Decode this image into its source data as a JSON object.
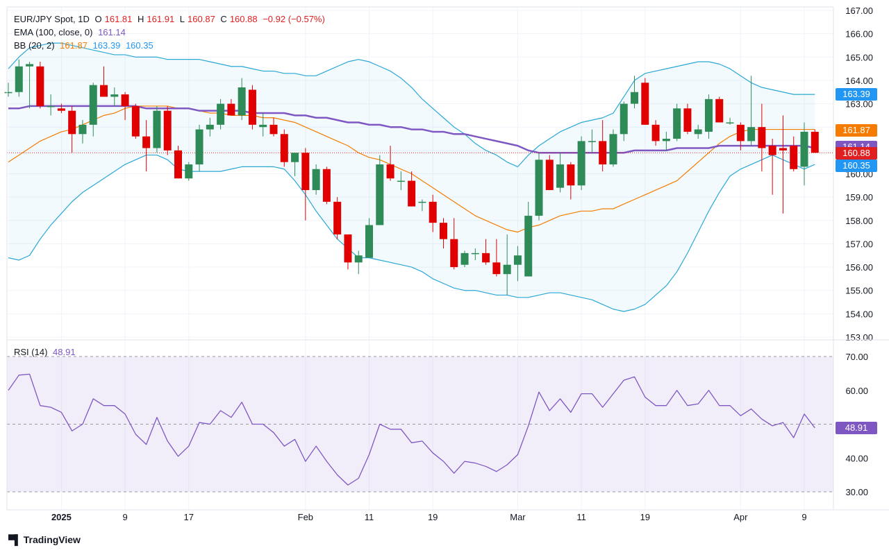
{
  "legend": {
    "symbol": "EUR/JPY Spot, 1D",
    "o_label": "O",
    "o": "161.81",
    "h_label": "H",
    "h": "161.91",
    "l_label": "L",
    "l": "160.87",
    "c_label": "C",
    "c": "160.88",
    "change": "−0.92 (−0.57%)",
    "ema_label": "EMA (100, close, 0)",
    "ema_value": "161.14",
    "bb_label": "BB (20, 2)",
    "bb_mid": "161.87",
    "bb_upper": "163.39",
    "bb_lower": "160.35",
    "rsi_label": "RSI (14)",
    "rsi_value": "48.91"
  },
  "price_badges": [
    {
      "text": "163.39",
      "value": 163.39,
      "color": "#2196f3"
    },
    {
      "text": "161.87",
      "value": 161.87,
      "color": "#f57c00"
    },
    {
      "text": "161.14",
      "value": 161.14,
      "color": "#7e57c2"
    },
    {
      "text": "160.88",
      "value": 160.88,
      "color": "#e02020"
    },
    {
      "text": "160.35",
      "value": 160.35,
      "color": "#2196f3"
    }
  ],
  "rsi_badge": {
    "text": "48.91",
    "value": 48.91,
    "color": "#7e57c2"
  },
  "brand": "TradingView",
  "colors": {
    "up": "#2e8b57",
    "down": "#e00000",
    "ema": "#7e57c2",
    "bb_mid": "#f57c00",
    "bb_band": "#2aa7d6",
    "rsi": "#7e57c2"
  },
  "chart_data": [
    {
      "type": "candlestick",
      "title": "EUR/JPY Spot, 1D",
      "ylim": [
        153.0,
        167.0
      ],
      "y_ticks": [
        "167.00",
        "166.00",
        "165.00",
        "164.00",
        "163.00",
        "162.00",
        "161.00",
        "160.00",
        "159.00",
        "158.00",
        "157.00",
        "156.00",
        "155.00",
        "154.00",
        "153.00"
      ],
      "x_ticks": [
        {
          "label": "2025",
          "i": 5
        },
        {
          "label": "9",
          "i": 11
        },
        {
          "label": "17",
          "i": 17
        },
        {
          "label": "Feb",
          "i": 28
        },
        {
          "label": "11",
          "i": 34
        },
        {
          "label": "19",
          "i": 40
        },
        {
          "label": "Mar",
          "i": 48
        },
        {
          "label": "11",
          "i": 54
        },
        {
          "label": "19",
          "i": 60
        },
        {
          "label": "Apr",
          "i": 69
        },
        {
          "label": "9",
          "i": 75
        }
      ],
      "candles": [
        {
          "o": 163.5,
          "h": 163.9,
          "l": 163.3,
          "c": 163.5
        },
        {
          "o": 163.5,
          "h": 164.9,
          "l": 163.3,
          "c": 164.6
        },
        {
          "o": 164.6,
          "h": 164.8,
          "l": 162.8,
          "c": 164.7
        },
        {
          "o": 164.6,
          "h": 164.8,
          "l": 162.8,
          "c": 162.9
        },
        {
          "o": 162.9,
          "h": 163.4,
          "l": 162.5,
          "c": 162.9
        },
        {
          "o": 162.8,
          "h": 163.0,
          "l": 162.6,
          "c": 162.7
        },
        {
          "o": 162.7,
          "h": 162.9,
          "l": 160.9,
          "c": 161.7
        },
        {
          "o": 161.7,
          "h": 162.3,
          "l": 161.3,
          "c": 162.1
        },
        {
          "o": 162.1,
          "h": 163.9,
          "l": 161.6,
          "c": 163.8
        },
        {
          "o": 163.8,
          "h": 164.6,
          "l": 163.3,
          "c": 163.3
        },
        {
          "o": 163.3,
          "h": 163.7,
          "l": 162.9,
          "c": 163.4
        },
        {
          "o": 163.4,
          "h": 163.5,
          "l": 162.3,
          "c": 162.9
        },
        {
          "o": 162.9,
          "h": 163.0,
          "l": 161.5,
          "c": 161.6
        },
        {
          "o": 161.6,
          "h": 162.3,
          "l": 160.1,
          "c": 161.1
        },
        {
          "o": 161.1,
          "h": 162.9,
          "l": 160.9,
          "c": 162.7
        },
        {
          "o": 162.7,
          "h": 162.9,
          "l": 160.8,
          "c": 161.0
        },
        {
          "o": 161.0,
          "h": 161.2,
          "l": 159.8,
          "c": 159.8
        },
        {
          "o": 159.8,
          "h": 160.5,
          "l": 159.7,
          "c": 160.4
        },
        {
          "o": 160.4,
          "h": 162.1,
          "l": 160.1,
          "c": 161.9
        },
        {
          "o": 161.9,
          "h": 162.4,
          "l": 161.6,
          "c": 162.1
        },
        {
          "o": 162.1,
          "h": 163.2,
          "l": 161.9,
          "c": 163.0
        },
        {
          "o": 163.0,
          "h": 163.2,
          "l": 162.5,
          "c": 162.5
        },
        {
          "o": 162.5,
          "h": 164.1,
          "l": 162.3,
          "c": 163.7
        },
        {
          "o": 163.6,
          "h": 163.8,
          "l": 161.9,
          "c": 162.1
        },
        {
          "o": 162.0,
          "h": 162.6,
          "l": 161.6,
          "c": 162.1
        },
        {
          "o": 162.1,
          "h": 162.4,
          "l": 161.6,
          "c": 161.7
        },
        {
          "o": 161.7,
          "h": 161.9,
          "l": 160.3,
          "c": 160.5
        },
        {
          "o": 160.5,
          "h": 160.8,
          "l": 159.9,
          "c": 160.9
        },
        {
          "o": 160.9,
          "h": 161.1,
          "l": 158.0,
          "c": 159.3
        },
        {
          "o": 159.3,
          "h": 160.4,
          "l": 159.1,
          "c": 160.2
        },
        {
          "o": 160.2,
          "h": 160.3,
          "l": 158.7,
          "c": 158.8
        },
        {
          "o": 158.8,
          "h": 159.0,
          "l": 157.2,
          "c": 157.4
        },
        {
          "o": 157.4,
          "h": 157.4,
          "l": 155.9,
          "c": 156.2
        },
        {
          "o": 156.2,
          "h": 156.7,
          "l": 155.7,
          "c": 156.5
        },
        {
          "o": 156.4,
          "h": 158.1,
          "l": 156.4,
          "c": 157.8
        },
        {
          "o": 157.8,
          "h": 160.8,
          "l": 157.9,
          "c": 160.4
        },
        {
          "o": 160.4,
          "h": 161.2,
          "l": 159.7,
          "c": 159.8
        },
        {
          "o": 159.7,
          "h": 160.1,
          "l": 159.3,
          "c": 159.7
        },
        {
          "o": 159.7,
          "h": 160.1,
          "l": 158.6,
          "c": 158.6
        },
        {
          "o": 158.8,
          "h": 158.9,
          "l": 158.4,
          "c": 158.8
        },
        {
          "o": 158.8,
          "h": 159.1,
          "l": 157.5,
          "c": 157.9
        },
        {
          "o": 157.9,
          "h": 158.1,
          "l": 156.8,
          "c": 157.2
        },
        {
          "o": 157.2,
          "h": 158.1,
          "l": 155.9,
          "c": 156.0
        },
        {
          "o": 156.1,
          "h": 156.7,
          "l": 156.0,
          "c": 156.6
        },
        {
          "o": 156.6,
          "h": 156.8,
          "l": 156.3,
          "c": 156.6
        },
        {
          "o": 156.6,
          "h": 157.2,
          "l": 156.1,
          "c": 156.2
        },
        {
          "o": 156.2,
          "h": 157.2,
          "l": 155.6,
          "c": 155.7
        },
        {
          "o": 155.7,
          "h": 157.4,
          "l": 154.8,
          "c": 156.1
        },
        {
          "o": 156.1,
          "h": 156.9,
          "l": 155.4,
          "c": 156.5
        },
        {
          "o": 155.6,
          "h": 158.8,
          "l": 155.6,
          "c": 158.2
        },
        {
          "o": 158.2,
          "h": 160.9,
          "l": 158.0,
          "c": 160.6
        },
        {
          "o": 160.6,
          "h": 160.8,
          "l": 159.3,
          "c": 159.3
        },
        {
          "o": 159.4,
          "h": 160.9,
          "l": 159.2,
          "c": 160.4
        },
        {
          "o": 160.4,
          "h": 160.5,
          "l": 158.9,
          "c": 159.5
        },
        {
          "o": 159.5,
          "h": 161.6,
          "l": 159.3,
          "c": 161.4
        },
        {
          "o": 161.4,
          "h": 161.9,
          "l": 160.9,
          "c": 161.4
        },
        {
          "o": 161.4,
          "h": 162.3,
          "l": 160.1,
          "c": 160.4
        },
        {
          "o": 160.4,
          "h": 161.9,
          "l": 160.3,
          "c": 161.7
        },
        {
          "o": 161.7,
          "h": 163.1,
          "l": 161.4,
          "c": 163.0
        },
        {
          "o": 163.0,
          "h": 164.2,
          "l": 162.8,
          "c": 163.5
        },
        {
          "o": 163.9,
          "h": 164.1,
          "l": 162.1,
          "c": 162.1
        },
        {
          "o": 162.1,
          "h": 162.3,
          "l": 161.2,
          "c": 161.4
        },
        {
          "o": 161.4,
          "h": 161.8,
          "l": 161.0,
          "c": 161.5
        },
        {
          "o": 161.5,
          "h": 163.0,
          "l": 161.4,
          "c": 162.8
        },
        {
          "o": 162.8,
          "h": 163.0,
          "l": 161.7,
          "c": 161.8
        },
        {
          "o": 161.7,
          "h": 162.1,
          "l": 161.5,
          "c": 161.9
        },
        {
          "o": 161.8,
          "h": 163.4,
          "l": 161.5,
          "c": 163.2
        },
        {
          "o": 163.2,
          "h": 163.3,
          "l": 162.2,
          "c": 162.2
        },
        {
          "o": 162.2,
          "h": 162.4,
          "l": 162.1,
          "c": 162.2
        },
        {
          "o": 162.1,
          "h": 162.2,
          "l": 161.0,
          "c": 161.4
        },
        {
          "o": 161.4,
          "h": 164.2,
          "l": 161.2,
          "c": 162.0
        },
        {
          "o": 162.0,
          "h": 163.0,
          "l": 160.1,
          "c": 161.1
        },
        {
          "o": 161.2,
          "h": 161.5,
          "l": 159.1,
          "c": 160.8
        },
        {
          "o": 161.1,
          "h": 162.5,
          "l": 158.3,
          "c": 161.0
        },
        {
          "o": 161.2,
          "h": 161.6,
          "l": 160.1,
          "c": 160.2
        },
        {
          "o": 160.3,
          "h": 162.2,
          "l": 159.5,
          "c": 161.8
        },
        {
          "o": 161.8,
          "h": 161.9,
          "l": 160.9,
          "c": 160.9
        }
      ],
      "ema": [
        162.8,
        162.8,
        162.9,
        162.9,
        162.9,
        162.9,
        162.9,
        162.9,
        162.9,
        162.9,
        162.9,
        162.9,
        162.9,
        162.8,
        162.8,
        162.8,
        162.8,
        162.8,
        162.7,
        162.7,
        162.7,
        162.7,
        162.7,
        162.6,
        162.6,
        162.6,
        162.6,
        162.5,
        162.5,
        162.4,
        162.4,
        162.3,
        162.2,
        162.2,
        162.1,
        162.1,
        162.0,
        162.0,
        161.9,
        161.9,
        161.8,
        161.8,
        161.7,
        161.7,
        161.6,
        161.5,
        161.4,
        161.3,
        161.2,
        161.0,
        160.9,
        160.9,
        160.9,
        160.9,
        160.9,
        160.9,
        160.9,
        160.9,
        160.9,
        161.0,
        161.0,
        161.0,
        161.0,
        161.1,
        161.1,
        161.1,
        161.1,
        161.2,
        161.2,
        161.2,
        161.2,
        161.2,
        161.2,
        161.2,
        161.2,
        161.2,
        161.1
      ],
      "bb_mid": [
        160.5,
        160.8,
        161.1,
        161.4,
        161.6,
        161.8,
        161.9,
        162.1,
        162.3,
        162.5,
        162.6,
        162.8,
        162.9,
        162.9,
        162.9,
        162.9,
        162.8,
        162.8,
        162.7,
        162.6,
        162.6,
        162.5,
        162.5,
        162.5,
        162.4,
        162.4,
        162.3,
        162.2,
        162.0,
        161.8,
        161.6,
        161.4,
        161.2,
        160.9,
        160.7,
        160.6,
        160.4,
        160.2,
        160.0,
        159.7,
        159.4,
        159.1,
        158.8,
        158.5,
        158.2,
        158.0,
        157.8,
        157.6,
        157.5,
        157.7,
        157.8,
        158.0,
        158.2,
        158.3,
        158.4,
        158.4,
        158.5,
        158.5,
        158.7,
        158.9,
        159.1,
        159.3,
        159.5,
        159.7,
        160.1,
        160.5,
        160.9,
        161.3,
        161.6,
        161.8,
        161.9,
        161.9,
        161.9,
        161.9,
        161.9,
        161.9,
        161.9
      ],
      "bb_upper": [
        164.5,
        165.0,
        165.4,
        165.5,
        165.6,
        165.6,
        165.5,
        165.4,
        165.3,
        165.2,
        165.1,
        165.1,
        165.0,
        165.0,
        165.0,
        164.9,
        164.9,
        164.9,
        164.9,
        164.8,
        164.7,
        164.6,
        164.6,
        164.5,
        164.4,
        164.4,
        164.3,
        164.3,
        164.2,
        164.2,
        164.4,
        164.6,
        164.8,
        164.9,
        164.8,
        164.6,
        164.4,
        164.1,
        163.7,
        163.2,
        162.8,
        162.4,
        162.0,
        161.7,
        161.3,
        161.0,
        160.8,
        160.5,
        160.3,
        160.8,
        161.2,
        161.5,
        161.8,
        162.0,
        162.2,
        162.3,
        162.4,
        162.6,
        163.3,
        164.0,
        164.3,
        164.4,
        164.5,
        164.6,
        164.7,
        164.8,
        164.8,
        164.7,
        164.5,
        164.2,
        163.9,
        163.7,
        163.6,
        163.5,
        163.4,
        163.4,
        163.4
      ],
      "bb_lower": [
        156.4,
        156.3,
        156.5,
        157.2,
        157.8,
        158.3,
        158.8,
        159.2,
        159.5,
        159.8,
        160.1,
        160.4,
        160.6,
        160.8,
        160.8,
        160.6,
        160.2,
        160.1,
        160.1,
        160.1,
        160.1,
        160.2,
        160.3,
        160.3,
        160.3,
        160.3,
        160.2,
        159.7,
        159.1,
        158.4,
        157.8,
        157.2,
        156.8,
        156.4,
        156.4,
        156.3,
        156.2,
        156.1,
        156.0,
        155.8,
        155.5,
        155.3,
        155.1,
        155.0,
        155.0,
        154.9,
        154.8,
        154.8,
        154.7,
        154.7,
        154.8,
        154.9,
        154.9,
        154.8,
        154.7,
        154.6,
        154.4,
        154.2,
        154.1,
        154.2,
        154.4,
        154.8,
        155.2,
        155.8,
        156.6,
        157.5,
        158.4,
        159.2,
        159.9,
        160.2,
        160.4,
        160.6,
        160.8,
        160.6,
        160.4,
        160.2,
        160.4
      ]
    },
    {
      "type": "line",
      "title": "RSI (14)",
      "ylim": [
        30,
        70
      ],
      "y_ticks": [
        "70.00",
        "60.00",
        "40.00",
        "30.00"
      ],
      "band": [
        30,
        70
      ],
      "midline": 50,
      "values": [
        60.0,
        64.5,
        64.8,
        55.5,
        55.0,
        53.5,
        48.0,
        50.0,
        57.5,
        55.5,
        55.5,
        53.0,
        47.0,
        44.0,
        52.0,
        45.0,
        40.5,
        43.5,
        50.5,
        50.0,
        54.0,
        52.0,
        56.5,
        50.0,
        50.0,
        47.5,
        43.5,
        45.5,
        39.0,
        43.5,
        39.0,
        35.0,
        32.0,
        34.0,
        41.0,
        50.0,
        48.5,
        48.5,
        44.5,
        45.0,
        41.5,
        39.0,
        35.5,
        39.0,
        38.5,
        37.5,
        36.0,
        38.0,
        41.0,
        49.5,
        59.5,
        54.0,
        57.5,
        53.5,
        59.0,
        59.0,
        55.0,
        59.0,
        63.0,
        64.0,
        58.0,
        55.5,
        55.5,
        60.0,
        55.5,
        56.0,
        60.0,
        55.5,
        55.5,
        52.5,
        54.5,
        51.5,
        49.5,
        50.5,
        46.0,
        53.0,
        48.91
      ]
    }
  ]
}
